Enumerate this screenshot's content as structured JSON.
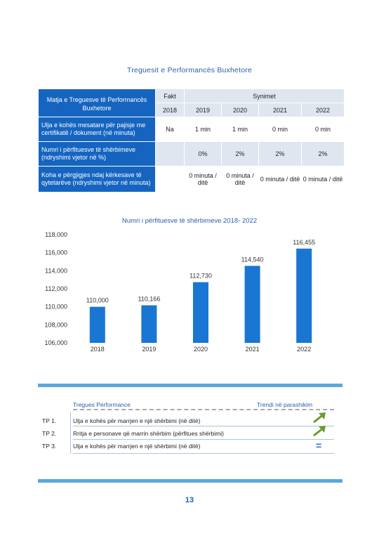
{
  "page_title": "Treguesit e Performancës Buxhetore",
  "table": {
    "measure_header": "Matja e Treguesve të Performancës Buxhetore",
    "fakt_header": "Fakt",
    "targets_header": "Synimet",
    "years": [
      "2018",
      "2019",
      "2020",
      "2021",
      "2022"
    ],
    "rows": [
      {
        "label": "Ulja e kohës mesatare për pajisje me certifikatë / dokument (në minuta)",
        "values": [
          "Na",
          "1 min",
          "1 min",
          "0 min",
          "0 min"
        ]
      },
      {
        "label": "Numri i përfituesve të shërbimeve (ndryshimi vjetor në %)",
        "values": [
          "",
          "0%",
          "2%",
          "2%",
          "2%"
        ]
      },
      {
        "label": "Koha e përgjigjes ndaj kërkesave të qytetarëve (ndryshimi vjetor në minuta)",
        "values": [
          "",
          "0 minuta / ditë",
          "0 minuta / ditë",
          "0 minuta / ditë",
          "0 minuta / ditë"
        ]
      }
    ]
  },
  "chart_data": {
    "type": "bar",
    "title": "Numri i përfituesve të shërbimeve 2018- 2022",
    "categories": [
      "2018",
      "2019",
      "2020",
      "2021",
      "2022"
    ],
    "values": [
      110000,
      110166,
      112730,
      114540,
      116455
    ],
    "value_labels": [
      "110,000",
      "110,166",
      "112,730",
      "114,540",
      "116,455"
    ],
    "ylim": [
      106000,
      118000
    ],
    "yticks": [
      106000,
      108000,
      110000,
      112000,
      114000,
      116000,
      118000
    ],
    "ytick_labels": [
      "106,000",
      "108,000",
      "110,000",
      "112,000",
      "114,000",
      "116,000",
      "118,000"
    ],
    "grid": false,
    "bar_color": "#1976d2"
  },
  "perf_table": {
    "header_left": "Tregues Performance",
    "header_right": "Trendi në parashikim",
    "rows": [
      {
        "code": "TP 1.",
        "desc": "Ulja e kohës për marrjen e një shërbimi (në ditë)",
        "trend": "up-arrow"
      },
      {
        "code": "TP 2.",
        "desc": "Rritja e personave që marrin shërbim (përfitues shërbimi)",
        "trend": "up-arrow"
      },
      {
        "code": "TP 3.",
        "desc": "Ulja e kohës për marrjen e një shërbimi (në ditë)",
        "trend": "="
      }
    ],
    "arrow_color": "#6a9a2e",
    "equal_color": "#2a6fbf"
  },
  "page_number": "13"
}
